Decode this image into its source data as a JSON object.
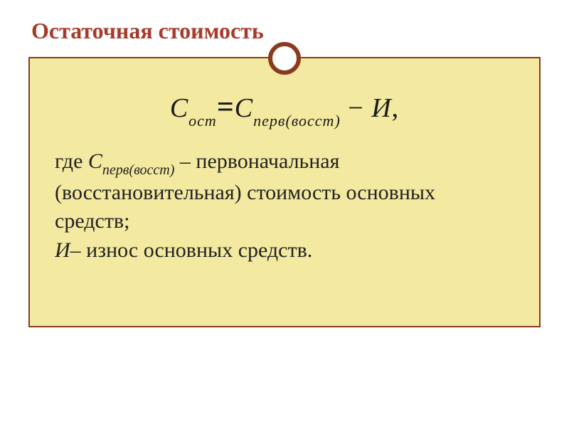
{
  "slide": {
    "title": "Остаточная стоимость",
    "title_color": "#a83a2a",
    "title_fontsize": 32,
    "background_color": "#ffffff",
    "content_background": "#f3e9a0",
    "border_color": "#8b3a1e",
    "ornament_fill": "#ffffff",
    "formula": {
      "lhs_var": "С",
      "lhs_sub": "ост",
      "eq": "=",
      "rhs1_var": "С",
      "rhs1_sub": "перв(восст)",
      "minus": " − ",
      "rhs2_var": "И",
      "comma": ",",
      "fontsize": 38,
      "sub_fontsize": 22,
      "color": "#1a1a1a"
    },
    "description": {
      "where": "где  ",
      "sym1_var": "С",
      "sym1_sub": "перв(восст)",
      "def1": "  – первоначальная (восстановительная) стоимость основных средств;",
      "sym2_var": "И",
      "def2": "– износ основных средств.",
      "fontsize": 30,
      "color": "#222222"
    }
  }
}
